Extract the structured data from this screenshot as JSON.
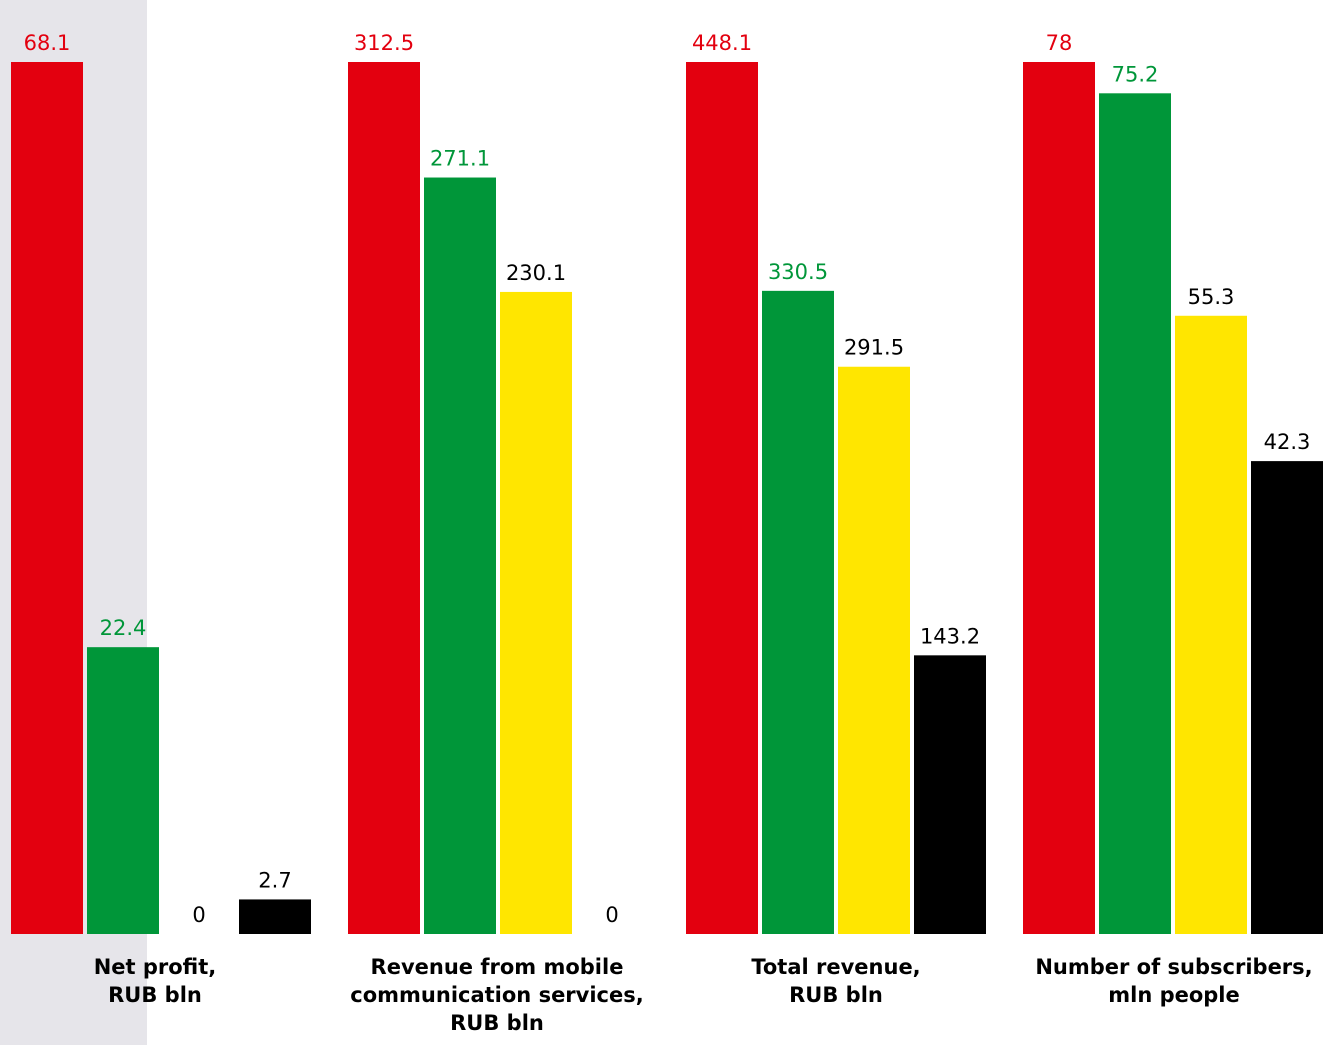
{
  "chart_data": {
    "type": "bar",
    "categories": [
      [
        "Net profit,",
        "RUB bln"
      ],
      [
        "Revenue from mobile",
        "communication services,",
        "RUB bln"
      ],
      [
        "Total revenue,",
        "RUB bln"
      ],
      [
        "Number of subscribers,",
        "mln people"
      ]
    ],
    "series": [
      {
        "values": [
          68.1,
          312.5,
          448.1,
          78
        ]
      },
      {
        "values": [
          22.4,
          271.1,
          330.5,
          75.2
        ]
      },
      {
        "values": [
          0,
          230.1,
          291.5,
          55.3
        ]
      },
      {
        "values": [
          2.7,
          0,
          143.2,
          42.3
        ]
      }
    ],
    "value_labels": [
      [
        "68.1",
        "312.5",
        "448.1",
        "78"
      ],
      [
        "22.4",
        "271.1",
        "330.5",
        "75.2"
      ],
      [
        "0",
        "230.1",
        "291.5",
        "55.3"
      ],
      [
        "2.7",
        "0",
        "143.2",
        "42.3"
      ]
    ],
    "group_max": [
      68.1,
      312.5,
      448.1,
      78
    ],
    "colors": {
      "series": [
        "#e3000f",
        "#009639",
        "#ffe600",
        "#000000"
      ],
      "label_colors": [
        "#e3000f",
        "#009639",
        "#000000",
        "#000000"
      ],
      "highlight_background": "#e6e5ea"
    },
    "highlighted_category_index": 0,
    "grid": false,
    "legend": "none"
  }
}
